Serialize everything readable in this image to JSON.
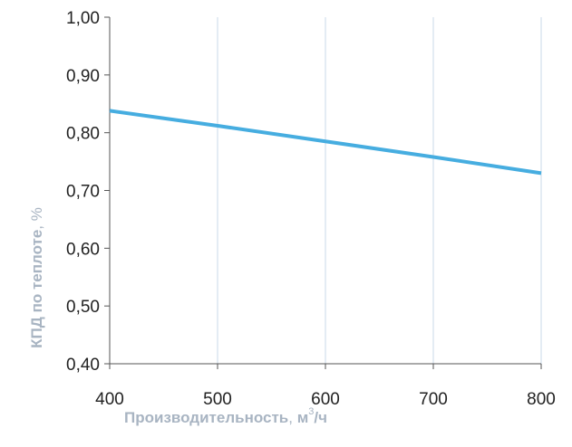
{
  "chart_data": {
    "type": "line",
    "xlabel_bold": "Производительность",
    "xlabel_sep": ", ",
    "xlabel_unit_base": "м",
    "xlabel_unit_sup": "3",
    "xlabel_unit_tail": "/ч",
    "ylabel_bold": "КПД по теплоте",
    "ylabel_unit": ", %",
    "xlim": [
      400,
      800
    ],
    "ylim": [
      0.4,
      1.0
    ],
    "x_ticks": [
      400,
      500,
      600,
      700,
      800
    ],
    "x_tick_labels": [
      "400",
      "500",
      "600",
      "700",
      "800"
    ],
    "y_ticks": [
      0.4,
      0.5,
      0.6,
      0.7,
      0.8,
      0.9,
      1.0
    ],
    "y_tick_labels": [
      "0,40",
      "0,50",
      "0,60",
      "0,70",
      "0,80",
      "0,90",
      "1,00"
    ],
    "grid": "vertical",
    "series": [
      {
        "x": [
          400,
          500,
          600,
          700,
          800
        ],
        "y": [
          0.838,
          0.812,
          0.785,
          0.758,
          0.73
        ],
        "color": "#46ade0"
      }
    ],
    "colors": {
      "grid": "#c8d9e8",
      "axis": "#555555"
    }
  }
}
